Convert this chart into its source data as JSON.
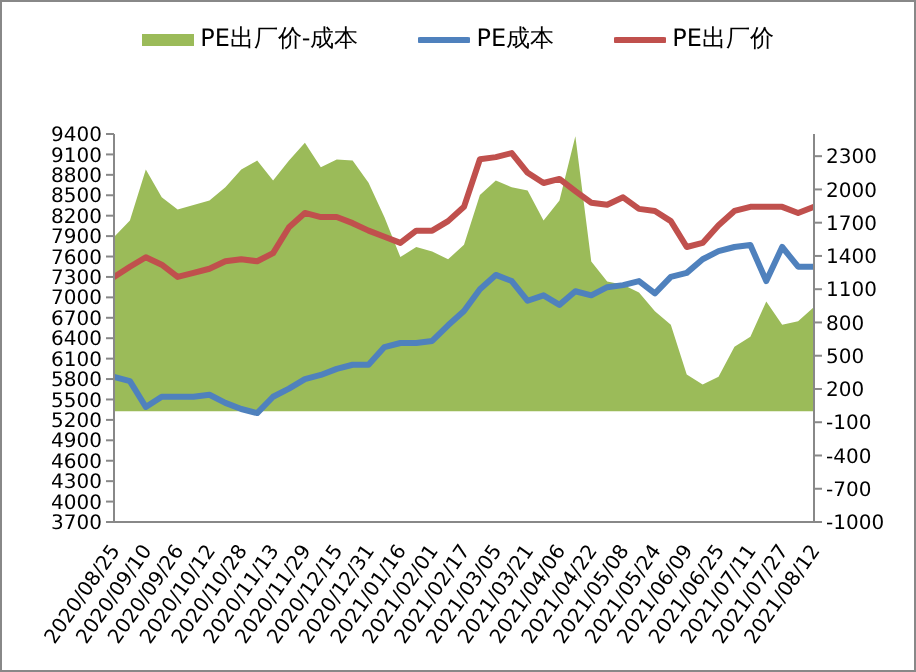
{
  "chart_data": {
    "type": "line",
    "x": [
      "2020-08-25",
      "2020-09-02",
      "2020-09-10",
      "2020-09-18",
      "2020-09-26",
      "2020-10-04",
      "2020-10-12",
      "2020-10-20",
      "2020-10-28",
      "2020-11-05",
      "2020-11-13",
      "2020-11-21",
      "2020-11-29",
      "2020-12-07",
      "2020-12-15",
      "2020-12-23",
      "2020-12-31",
      "2021-01-08",
      "2021-01-16",
      "2021-01-24",
      "2021-02-01",
      "2021-02-09",
      "2021-02-17",
      "2021-02-25",
      "2021-03-05",
      "2021-03-13",
      "2021-03-21",
      "2021-03-29",
      "2021-04-06",
      "2021-04-14",
      "2021-04-22",
      "2021-04-30",
      "2021-05-08",
      "2021-05-16",
      "2021-05-24",
      "2021-06-01",
      "2021-06-09",
      "2021-06-17",
      "2021-06-25",
      "2021-07-03",
      "2021-07-11",
      "2021-07-19",
      "2021-07-27",
      "2021-08-04",
      "2021-08-12"
    ],
    "series": [
      {
        "name": "PE出厂价-成本",
        "type": "area",
        "axis": "y2",
        "color": "#9bbb59",
        "values": [
          1570,
          1720,
          2180,
          1930,
          1820,
          1860,
          1900,
          2020,
          2180,
          2260,
          2080,
          2260,
          2420,
          2200,
          2270,
          2260,
          2060,
          1750,
          1390,
          1480,
          1440,
          1370,
          1500,
          1950,
          2080,
          2020,
          1990,
          1720,
          1900,
          2480,
          1350,
          1170,
          1140,
          1070,
          900,
          780,
          330,
          240,
          310,
          580,
          670,
          990,
          780,
          810,
          940
        ]
      },
      {
        "name": "PE成本",
        "color": "#4f81bd",
        "values": [
          5830,
          5770,
          5390,
          5540,
          5540,
          5540,
          5570,
          5450,
          5360,
          5300,
          5540,
          5660,
          5800,
          5860,
          5950,
          6010,
          6010,
          6270,
          6330,
          6330,
          6360,
          6590,
          6800,
          7120,
          7330,
          7240,
          6950,
          7030,
          6890,
          7090,
          7030,
          7150,
          7180,
          7240,
          7060,
          7300,
          7360,
          7560,
          7680,
          7740,
          7770,
          7240,
          7740,
          7450,
          7450
        ]
      },
      {
        "name": "PE出厂价",
        "color": "#c0504d",
        "values": [
          7300,
          7450,
          7590,
          7480,
          7300,
          7360,
          7420,
          7530,
          7560,
          7530,
          7650,
          8030,
          8240,
          8180,
          8180,
          8090,
          7980,
          7890,
          7800,
          7980,
          7980,
          8120,
          8330,
          9030,
          9060,
          9120,
          8830,
          8680,
          8740,
          8560,
          8390,
          8360,
          8470,
          8300,
          8270,
          8120,
          7740,
          7800,
          8060,
          8270,
          8330,
          8330,
          8330,
          8240,
          8330
        ]
      }
    ],
    "xlim": [
      "2020-08-25",
      "2021-08-12"
    ],
    "xticks": [
      {
        "value": "2020-08-25",
        "label": "2020/08/25"
      },
      {
        "value": "2020-09-10",
        "label": "2020/09/10"
      },
      {
        "value": "2020-09-26",
        "label": "2020/09/26"
      },
      {
        "value": "2020-10-12",
        "label": "2020/10/12"
      },
      {
        "value": "2020-10-28",
        "label": "2020/10/28"
      },
      {
        "value": "2020-11-13",
        "label": "2020/11/13"
      },
      {
        "value": "2020-11-29",
        "label": "2020/11/29"
      },
      {
        "value": "2020-12-15",
        "label": "2020/12/15"
      },
      {
        "value": "2020-12-31",
        "label": "2020/12/31"
      },
      {
        "value": "2021-01-16",
        "label": "2021/01/16"
      },
      {
        "value": "2021-02-01",
        "label": "2021/02/01"
      },
      {
        "value": "2021-02-17",
        "label": "2021/02/17"
      },
      {
        "value": "2021-03-05",
        "label": "2021/03/05"
      },
      {
        "value": "2021-03-21",
        "label": "2021/03/21"
      },
      {
        "value": "2021-04-06",
        "label": "2021/04/06"
      },
      {
        "value": "2021-04-22",
        "label": "2021/04/22"
      },
      {
        "value": "2021-05-08",
        "label": "2021/05/08"
      },
      {
        "value": "2021-05-24",
        "label": "2021/05/24"
      },
      {
        "value": "2021-06-09",
        "label": "2021/06/09"
      },
      {
        "value": "2021-06-25",
        "label": "2021/06/25"
      },
      {
        "value": "2021-07-11",
        "label": "2021/07/11"
      },
      {
        "value": "2021-07-27",
        "label": "2021/07/27"
      },
      {
        "value": "2021-08-12",
        "label": "2021/08/12"
      }
    ],
    "ylim": [
      3700,
      9400
    ],
    "yticks": [
      3700,
      4000,
      4300,
      4600,
      4900,
      5200,
      5500,
      5800,
      6100,
      6400,
      6700,
      7000,
      7300,
      7600,
      7900,
      8200,
      8500,
      8800,
      9100,
      9400
    ],
    "y2lim": [
      -1000,
      2500
    ],
    "y2ticks": [
      -1000,
      -700,
      -400,
      -100,
      200,
      500,
      800,
      1100,
      1400,
      1700,
      2000,
      2300
    ],
    "grid": false,
    "legend": "top"
  }
}
